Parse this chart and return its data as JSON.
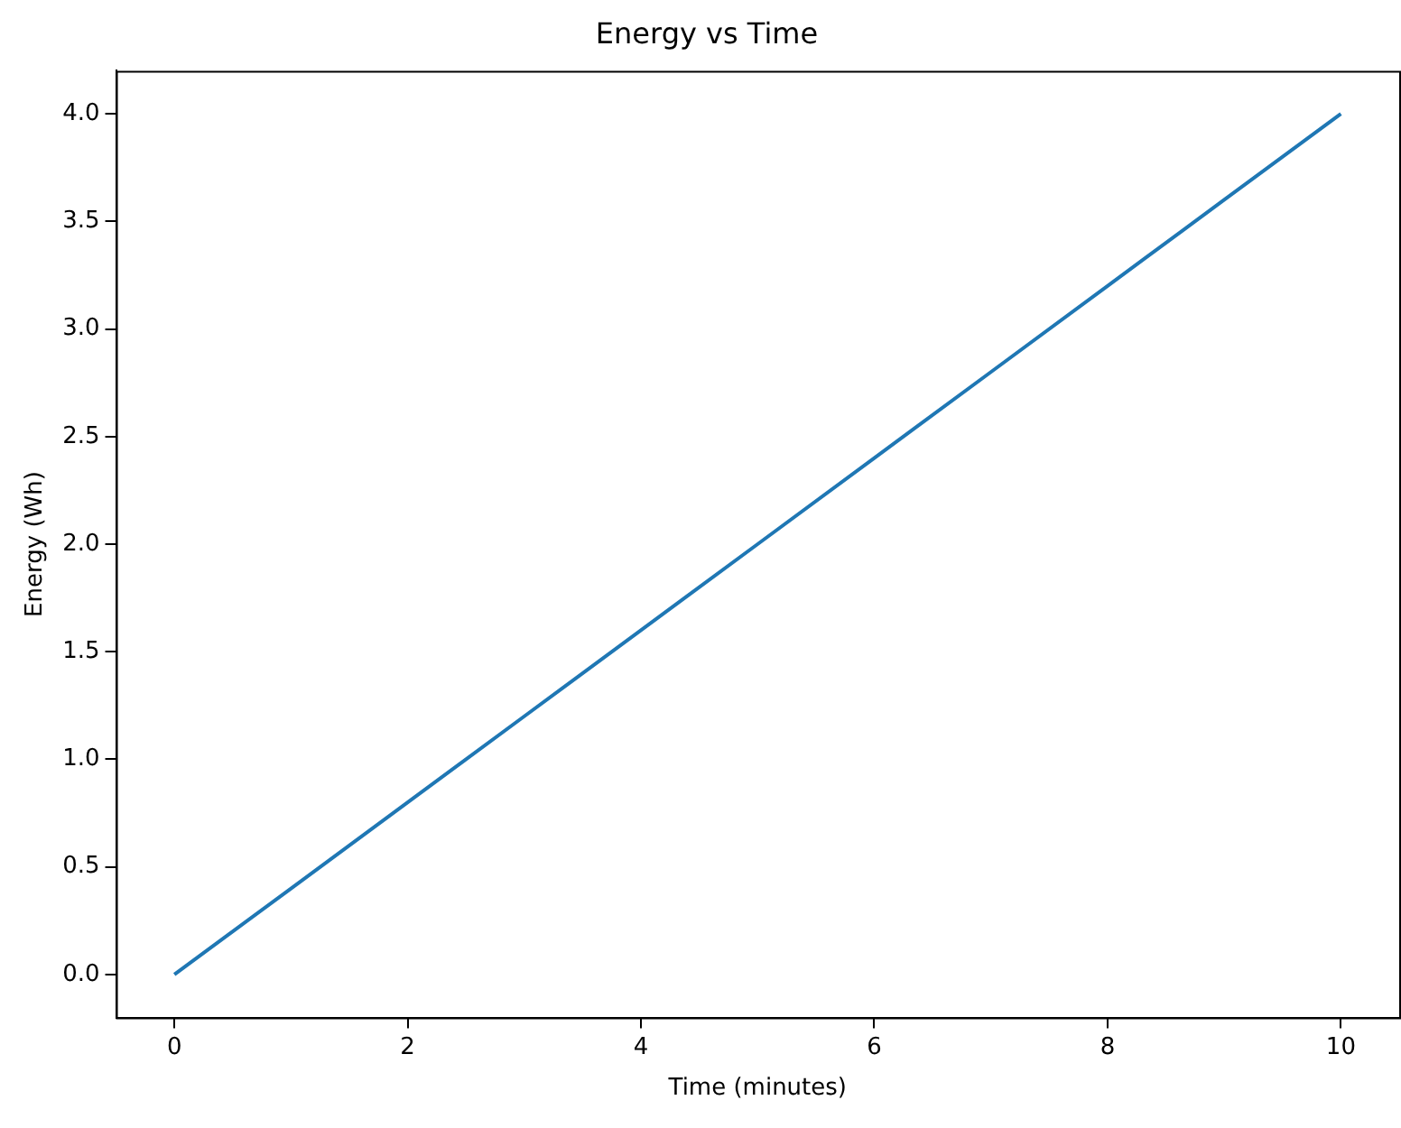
{
  "chart_data": {
    "type": "line",
    "title": "Energy vs Time",
    "xlabel": "Time (minutes)",
    "ylabel": "Energy (Wh)",
    "x": [
      0,
      1,
      2,
      3,
      4,
      5,
      6,
      7,
      8,
      9,
      10
    ],
    "series": [
      {
        "color": "#1f77b4",
        "values": [
          0,
          0.4,
          0.8,
          1.2,
          1.6,
          2.0,
          2.4,
          2.8,
          3.2,
          3.6,
          4.0
        ]
      }
    ],
    "xlim": [
      -0.5,
      10.5
    ],
    "ylim": [
      -0.2,
      4.2
    ],
    "xticks": [
      0,
      2,
      4,
      6,
      8,
      10
    ],
    "yticks": [
      {
        "value": 0,
        "label": "0.0"
      },
      {
        "value": 0.5,
        "label": "0.5"
      },
      {
        "value": 1,
        "label": "1.0"
      },
      {
        "value": 1.5,
        "label": "1.5"
      },
      {
        "value": 2,
        "label": "2.0"
      },
      {
        "value": 2.5,
        "label": "2.5"
      },
      {
        "value": 3,
        "label": "3.0"
      },
      {
        "value": 3.5,
        "label": "3.5"
      },
      {
        "value": 4,
        "label": "4.0"
      }
    ],
    "grid": false,
    "legend": false,
    "marker": "none",
    "line_style": "solid"
  }
}
